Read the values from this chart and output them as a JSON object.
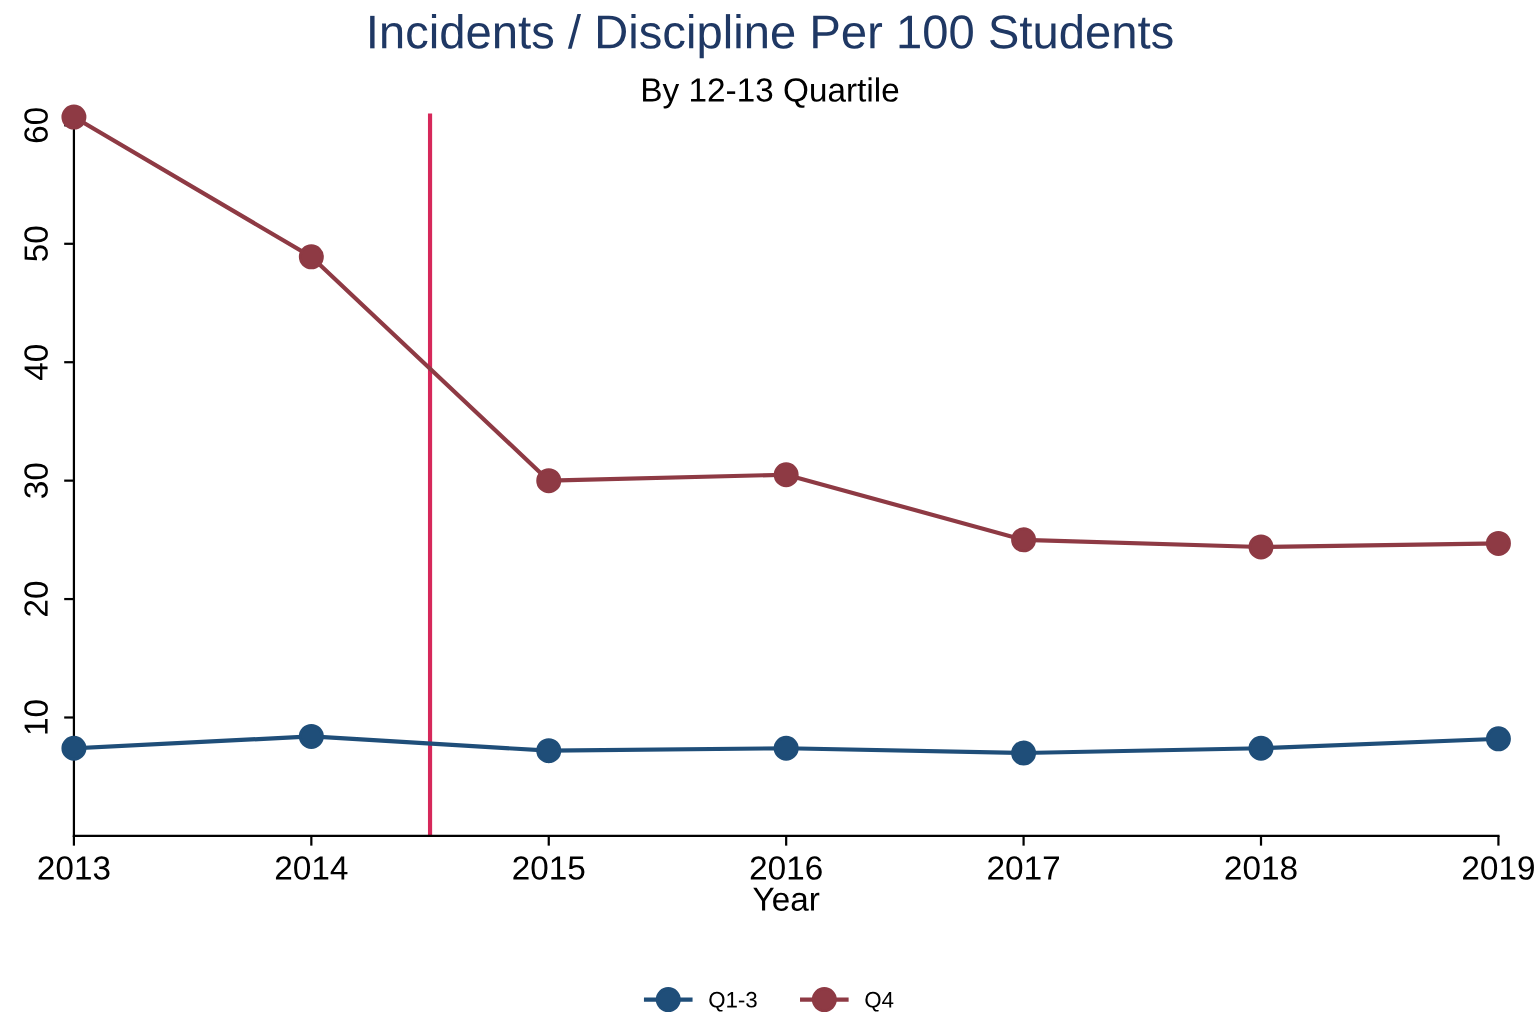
{
  "chart_data": {
    "type": "line",
    "title": "Incidents / Discipline Per 100 Students",
    "subtitle": "By 12-13 Quartile",
    "xlabel": "Year",
    "x": [
      2013,
      2014,
      2015,
      2016,
      2017,
      2018,
      2019
    ],
    "series": [
      {
        "name": "Q1-3",
        "color": "#1f4e79",
        "values": [
          7.4,
          8.4,
          7.2,
          7.4,
          7.0,
          7.4,
          8.2
        ]
      },
      {
        "name": "Q4",
        "color": "#8e3a44",
        "values": [
          60.7,
          48.9,
          30.0,
          30.5,
          25.0,
          24.4,
          24.7
        ]
      }
    ],
    "xlim": [
      2013,
      2019
    ],
    "xticks": [
      2013,
      2014,
      2015,
      2016,
      2017,
      2018,
      2019
    ],
    "ylim": [
      0,
      61
    ],
    "yticks": [
      10,
      20,
      30,
      40,
      50,
      60
    ],
    "ref_lines": [
      {
        "axis": "x",
        "value": 2014.5,
        "color": "#d6285a"
      }
    ],
    "grid": false,
    "legend": "bottom",
    "marker": "circle",
    "line_style": "solid"
  }
}
